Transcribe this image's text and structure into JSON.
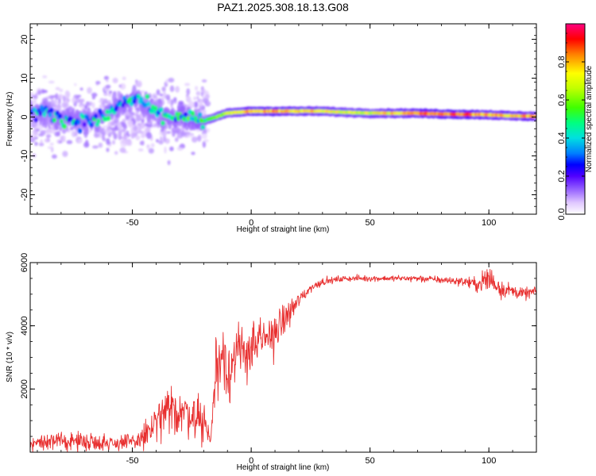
{
  "title": "PAZ1.2025.308.18.13.G08",
  "chart_data": [
    {
      "type": "heatmap",
      "name": "spectrogram",
      "xlabel": "Height of straight line (km)",
      "ylabel": "Frequency (Hz)",
      "xlim": [
        -93,
        120
      ],
      "ylim": [
        -25,
        24
      ],
      "xticks": [
        -50,
        0,
        50,
        100
      ],
      "yticks": [
        -20,
        -10,
        0,
        10,
        20
      ],
      "xtick_labels": [
        "-50",
        "0",
        "50",
        "100"
      ],
      "ytick_labels": [
        "-20",
        "-10",
        "0",
        "10",
        "20"
      ],
      "colorbar": {
        "label": "Normalized spectral amplitude",
        "range": [
          0,
          1
        ],
        "ticks": [
          0.0,
          0.2,
          0.4,
          0.6,
          0.8
        ],
        "tick_labels": [
          "0.0",
          "0.2",
          "0.4",
          "0.6",
          "0.8"
        ]
      },
      "ridge": {
        "x": [
          -93,
          -85,
          -75,
          -65,
          -55,
          -48,
          -40,
          -30,
          -20,
          -10,
          0,
          10,
          20,
          30,
          40,
          50,
          60,
          70,
          80,
          90,
          100,
          110,
          120
        ],
        "freq": [
          1,
          1,
          -1,
          -1,
          3,
          5,
          1,
          0,
          -1,
          1,
          1.5,
          1.5,
          1.5,
          1.5,
          1.2,
          1.0,
          1.0,
          1.0,
          0.8,
          0.7,
          0.6,
          0.3,
          0.2
        ],
        "amplitude": [
          0.35,
          0.4,
          0.4,
          0.4,
          0.42,
          0.4,
          0.38,
          0.45,
          0.5,
          0.7,
          0.85,
          0.85,
          0.8,
          0.78,
          0.72,
          0.72,
          0.8,
          0.85,
          0.88,
          0.9,
          0.82,
          0.8,
          0.85
        ]
      }
    },
    {
      "type": "line",
      "name": "snr",
      "xlabel": "Height of straight line (km)",
      "ylabel": "SNR (10 * v/v)",
      "xlim": [
        -93,
        120
      ],
      "ylim": [
        0,
        6000
      ],
      "xticks": [
        -50,
        0,
        50,
        100
      ],
      "yticks": [
        2000,
        4000,
        6000
      ],
      "xtick_labels": [
        "-50",
        "0",
        "50",
        "100"
      ],
      "ytick_labels": [
        "2000",
        "4000",
        "6000"
      ],
      "line_color": "#e83030",
      "envelope": {
        "x": [
          -93,
          -80,
          -70,
          -60,
          -50,
          -45,
          -40,
          -35,
          -30,
          -25,
          -20,
          -17,
          -15,
          -12,
          -10,
          -5,
          0,
          5,
          10,
          15,
          20,
          25,
          30,
          40,
          50,
          60,
          70,
          80,
          90,
          95,
          100,
          105,
          110,
          115,
          120
        ],
        "mean": [
          300,
          350,
          350,
          300,
          300,
          500,
          900,
          1300,
          1300,
          1200,
          1000,
          400,
          2500,
          3300,
          2600,
          3100,
          3300,
          3500,
          3800,
          4300,
          4800,
          5200,
          5400,
          5500,
          5500,
          5500,
          5500,
          5450,
          5400,
          5300,
          5500,
          5200,
          5100,
          5000,
          5100
        ],
        "noise": [
          250,
          280,
          300,
          280,
          300,
          500,
          700,
          800,
          800,
          700,
          800,
          300,
          1200,
          1300,
          1100,
          1000,
          900,
          800,
          700,
          500,
          300,
          150,
          120,
          100,
          100,
          100,
          120,
          120,
          150,
          250,
          600,
          350,
          200,
          200,
          150
        ]
      }
    }
  ]
}
